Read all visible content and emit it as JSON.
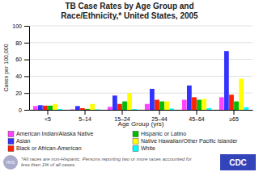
{
  "chart_data": {
    "type": "bar",
    "title": "TB Case Rates by Age Group and\nRace/Ethnicity,* United States, 2005",
    "x_label": "Age Group (yrs)",
    "y_label": "Cases per 100,000",
    "categories": [
      "<5",
      "5–14",
      "15–24",
      "25–44",
      "45–64",
      "≥65"
    ],
    "series": [
      {
        "name": "American Indian/Alaska Native",
        "color": "#ff44ff",
        "values": [
          4.5,
          0.5,
          3.5,
          7.0,
          12.0,
          15.0
        ]
      },
      {
        "name": "Asian",
        "color": "#3333ff",
        "values": [
          5.5,
          4.5,
          17.0,
          25.0,
          29.0,
          70.0
        ]
      },
      {
        "name": "Black or African-American",
        "color": "#ff2200",
        "values": [
          5.0,
          2.0,
          7.0,
          12.0,
          15.0,
          18.0
        ]
      },
      {
        "name": "Hispanic or Latino",
        "color": "#00bb00",
        "values": [
          5.0,
          1.0,
          10.0,
          10.0,
          12.0,
          10.0
        ]
      },
      {
        "name": "Native Hawaiian/Other Pacific Islander",
        "color": "#ffff00",
        "values": [
          7.0,
          7.0,
          20.0,
          10.0,
          13.0,
          37.0
        ]
      },
      {
        "name": "White",
        "color": "#00ffff",
        "values": [
          1.0,
          0.5,
          1.0,
          1.5,
          2.0,
          3.0
        ]
      }
    ],
    "ylim": [
      0,
      100
    ],
    "yticks": [
      0,
      20,
      40,
      60,
      80,
      100
    ],
    "grid": true,
    "legend": "bottom",
    "annotations": [
      "*All races are non-Hispanic. Persons reporting two or more races accounted for\nless than 1% of all cases.",
      "HHS",
      "CDC"
    ]
  }
}
